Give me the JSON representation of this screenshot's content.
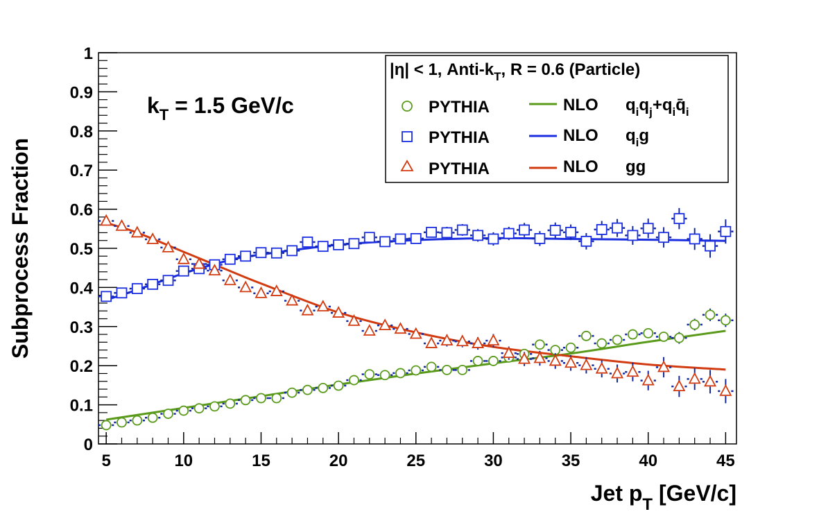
{
  "chart_data": {
    "type": "scatter",
    "xlabel": "Jet p",
    "xlabel_sub": "T",
    "xlabel_unit": " [GeV/c]",
    "ylabel": "Subprocess Fraction",
    "xlim": [
      4.5,
      45.7
    ],
    "ylim": [
      0,
      1
    ],
    "x_ticks": [
      5,
      10,
      15,
      20,
      25,
      30,
      35,
      40,
      45
    ],
    "y_ticks": [
      0,
      0.1,
      0.2,
      0.3,
      0.4,
      0.5,
      0.6,
      0.7,
      0.8,
      0.9,
      1
    ],
    "y_tick_labels": [
      "0",
      "0.1",
      "0.2",
      "0.3",
      "0.4",
      "0.5",
      "0.6",
      "0.7",
      "0.8",
      "0.9",
      "1"
    ],
    "grid": false,
    "legend_placement": "top-right",
    "annotation": {
      "main": "k",
      "sub": "T",
      "rest": " = 1.5 GeV/c"
    },
    "legend": {
      "header": {
        "prefix": "|η| < 1, Anti-k",
        "sub": "T",
        "rest": ", R = 0.6 (Particle)"
      },
      "pythia_label": "PYTHIA",
      "nlo_label": "NLO",
      "qq_label": {
        "a": "q",
        "a_sub": "i",
        "b": "q",
        "b_sub": "j",
        "plus": "+q",
        "c_sub": "i",
        "d": "q̄",
        "d_sub": "i"
      },
      "qg_label": {
        "a": "q",
        "a_sub": "i",
        "b": "g"
      },
      "gg_label": "gg"
    },
    "x": [
      5,
      6,
      7,
      8,
      9,
      10,
      11,
      12,
      13,
      14,
      15,
      16,
      17,
      18,
      19,
      20,
      21,
      22,
      23,
      24,
      25,
      26,
      27,
      28,
      29,
      30,
      31,
      32,
      33,
      34,
      35,
      36,
      37,
      38,
      39,
      40,
      41,
      42,
      43,
      44,
      45
    ],
    "series": [
      {
        "marker": "circle",
        "color": "#5a9a1a",
        "values": [
          0.048,
          0.055,
          0.06,
          0.067,
          0.077,
          0.085,
          0.091,
          0.096,
          0.103,
          0.112,
          0.117,
          0.117,
          0.131,
          0.138,
          0.143,
          0.149,
          0.163,
          0.178,
          0.176,
          0.181,
          0.188,
          0.197,
          0.189,
          0.189,
          0.212,
          0.212,
          0.221,
          0.23,
          0.254,
          0.24,
          0.246,
          0.276,
          0.257,
          0.266,
          0.28,
          0.283,
          0.274,
          0.271,
          0.305,
          0.33,
          0.316
        ],
        "errors": [
          0.005,
          0.005,
          0.005,
          0.005,
          0.005,
          0.005,
          0.005,
          0.005,
          0.005,
          0.005,
          0.005,
          0.006,
          0.006,
          0.006,
          0.006,
          0.006,
          0.006,
          0.006,
          0.007,
          0.007,
          0.007,
          0.007,
          0.008,
          0.008,
          0.008,
          0.009,
          0.009,
          0.009,
          0.01,
          0.01,
          0.011,
          0.011,
          0.012,
          0.012,
          0.013,
          0.013,
          0.014,
          0.015,
          0.015,
          0.016,
          0.017
        ]
      },
      {
        "marker": "square",
        "color": "#1a2ee0",
        "values": [
          0.377,
          0.386,
          0.397,
          0.408,
          0.418,
          0.442,
          0.448,
          0.458,
          0.472,
          0.48,
          0.489,
          0.488,
          0.494,
          0.516,
          0.505,
          0.509,
          0.512,
          0.528,
          0.517,
          0.524,
          0.525,
          0.541,
          0.54,
          0.547,
          0.533,
          0.524,
          0.538,
          0.547,
          0.525,
          0.546,
          0.541,
          0.518,
          0.548,
          0.552,
          0.533,
          0.551,
          0.528,
          0.576,
          0.524,
          0.506,
          0.543
        ],
        "errors": [
          0.008,
          0.008,
          0.008,
          0.008,
          0.008,
          0.009,
          0.009,
          0.009,
          0.009,
          0.01,
          0.01,
          0.01,
          0.011,
          0.011,
          0.011,
          0.012,
          0.012,
          0.012,
          0.013,
          0.013,
          0.014,
          0.014,
          0.015,
          0.015,
          0.016,
          0.017,
          0.017,
          0.018,
          0.019,
          0.02,
          0.02,
          0.021,
          0.022,
          0.023,
          0.024,
          0.025,
          0.026,
          0.027,
          0.028,
          0.03,
          0.031
        ]
      },
      {
        "marker": "triangle",
        "color": "#d23a10",
        "values": [
          0.57,
          0.557,
          0.54,
          0.523,
          0.502,
          0.472,
          0.46,
          0.443,
          0.418,
          0.4,
          0.385,
          0.39,
          0.366,
          0.341,
          0.351,
          0.335,
          0.314,
          0.289,
          0.303,
          0.294,
          0.281,
          0.257,
          0.264,
          0.262,
          0.257,
          0.264,
          0.232,
          0.217,
          0.219,
          0.212,
          0.207,
          0.201,
          0.192,
          0.18,
          0.184,
          0.162,
          0.196,
          0.147,
          0.166,
          0.159,
          0.135
        ],
        "errors": [
          0.008,
          0.008,
          0.008,
          0.008,
          0.008,
          0.009,
          0.009,
          0.009,
          0.009,
          0.01,
          0.01,
          0.01,
          0.011,
          0.011,
          0.011,
          0.012,
          0.012,
          0.012,
          0.013,
          0.013,
          0.014,
          0.014,
          0.015,
          0.015,
          0.016,
          0.017,
          0.017,
          0.018,
          0.019,
          0.02,
          0.02,
          0.021,
          0.022,
          0.023,
          0.024,
          0.025,
          0.026,
          0.027,
          0.028,
          0.03,
          0.031
        ]
      }
    ],
    "curves": [
      {
        "color": "#5a9a1a",
        "x": [
          5,
          10,
          15,
          20,
          25,
          30,
          35,
          40,
          45
        ],
        "values": [
          0.062,
          0.092,
          0.122,
          0.152,
          0.18,
          0.206,
          0.231,
          0.261,
          0.289
        ]
      },
      {
        "color": "#1a2ee0",
        "x": [
          5,
          7,
          10,
          13,
          15,
          20,
          25,
          30,
          35,
          40,
          45
        ],
        "values": [
          0.368,
          0.394,
          0.436,
          0.47,
          0.484,
          0.509,
          0.521,
          0.526,
          0.524,
          0.522,
          0.519
        ]
      },
      {
        "color": "#d23a10",
        "x": [
          5,
          7,
          10,
          13,
          15,
          20,
          25,
          30,
          35,
          40,
          45
        ],
        "values": [
          0.565,
          0.54,
          0.491,
          0.442,
          0.41,
          0.336,
          0.285,
          0.248,
          0.224,
          0.203,
          0.19
        ]
      }
    ]
  }
}
